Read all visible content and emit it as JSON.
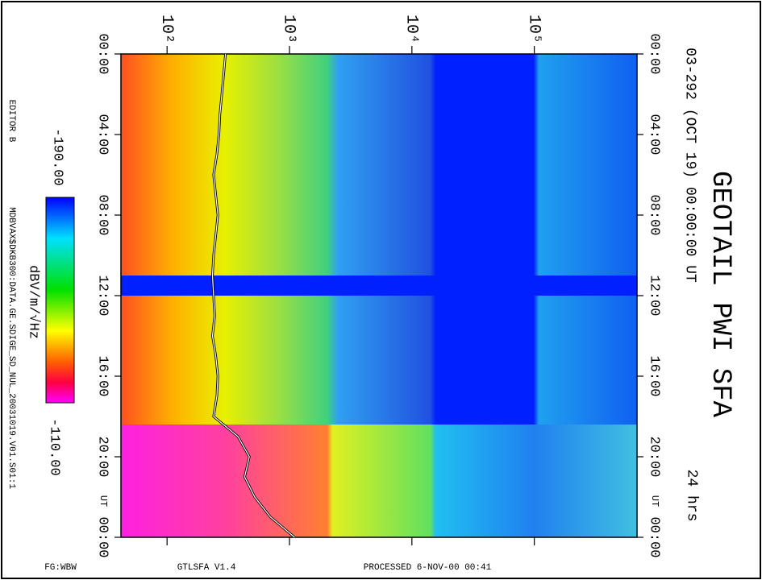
{
  "chart_data": {
    "type": "spectrogram",
    "title": "GEOTAIL PWI SFA",
    "subtitle": "03-292 (OCT 19) 00:00:00 UT",
    "duration": "24 hrs",
    "editor": "EDITOR B",
    "file": "MDBVAX$DKB300:DATA.GE.SDIGE_SD_NUL_20031019.V01.S01:1",
    "footer": [
      "FG:WBW",
      "GTLSFA V1.4",
      "PROCESSED 6-NOV-00 00:41"
    ],
    "xscale": "log",
    "xlim": [
      42,
      690000
    ],
    "xticks": [
      {
        "value": 100,
        "label": "10²"
      },
      {
        "value": 1000,
        "label": "10³"
      },
      {
        "value": 10000,
        "label": "10⁴"
      },
      {
        "value": 100000,
        "label": "10⁵"
      }
    ],
    "ylim": [
      0,
      24
    ],
    "yticks": [
      {
        "value": 0,
        "label": "00:00"
      },
      {
        "value": 4,
        "label": "04:00"
      },
      {
        "value": 8,
        "label": "08:00"
      },
      {
        "value": 12,
        "label": "12:00"
      },
      {
        "value": 16,
        "label": "16:00"
      },
      {
        "value": 20,
        "label": "20:00"
      },
      {
        "value": 24,
        "label": "00:00"
      }
    ],
    "y_unit": "UT",
    "y_unit_at": 22.2,
    "colorbar": {
      "label": "dBV/m/√Hz",
      "ticks": [
        {
          "value": -190,
          "label": "-190.00"
        },
        {
          "value": -110,
          "label": "-110.00"
        }
      ]
    },
    "trace": {
      "color": "#ffffff",
      "t": [
        0,
        1,
        2,
        3,
        4,
        5,
        6,
        7,
        8,
        9,
        10,
        11,
        12,
        13,
        14,
        15,
        16,
        17,
        18,
        19,
        20,
        21,
        22,
        23,
        24
      ],
      "values": [
        300,
        290,
        280,
        270,
        265,
        255,
        240,
        250,
        260,
        250,
        240,
        235,
        240,
        245,
        235,
        250,
        260,
        255,
        240,
        380,
        470,
        430,
        520,
        700,
        1100
      ]
    }
  }
}
